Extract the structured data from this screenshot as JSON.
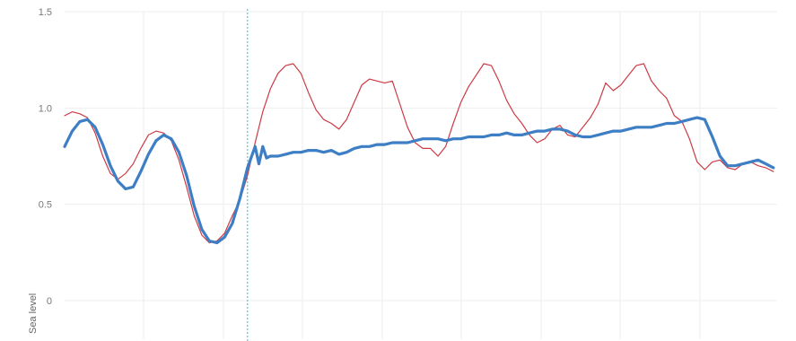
{
  "chart_data": {
    "type": "line",
    "title": "",
    "xlabel": "",
    "ylabel": "Sea level",
    "ylim": [
      -0.1,
      1.5
    ],
    "xlim": [
      0,
      187
    ],
    "yticks": [
      0,
      0.5,
      1.0,
      1.5
    ],
    "ytick_labels": [
      "0",
      "0.5",
      "1.0",
      "1.5"
    ],
    "grid": true,
    "legend": "none",
    "cursor_x": 48,
    "colors": {
      "red": "#cc3b45",
      "blue": "#3d7ec4",
      "grid": "#eeeeee",
      "cursor": "#2bbdd0"
    },
    "series": [
      {
        "color": "red",
        "x": [
          0,
          2,
          4,
          6,
          8,
          10,
          12,
          14,
          16,
          18,
          20,
          22,
          24,
          26,
          28,
          30,
          32,
          34,
          36,
          38,
          40,
          42,
          44,
          46,
          48,
          50,
          52,
          54,
          56,
          58,
          60,
          62,
          64,
          66,
          68,
          70,
          72,
          74,
          76,
          78,
          80,
          82,
          84,
          86,
          88,
          90,
          92,
          94,
          96,
          98,
          100,
          102,
          104,
          106,
          108,
          110,
          112,
          114,
          116,
          118,
          120,
          122,
          124,
          126,
          128,
          130,
          132,
          134,
          136,
          138,
          140,
          142,
          144,
          146,
          148,
          150,
          152,
          154,
          156,
          158,
          160,
          162,
          164,
          166,
          168,
          170,
          172,
          174,
          176,
          178,
          180,
          182,
          184,
          186
        ],
        "values": [
          0.96,
          0.98,
          0.97,
          0.95,
          0.87,
          0.75,
          0.66,
          0.63,
          0.66,
          0.71,
          0.79,
          0.86,
          0.88,
          0.87,
          0.83,
          0.73,
          0.59,
          0.44,
          0.34,
          0.3,
          0.31,
          0.35,
          0.44,
          0.52,
          0.65,
          0.82,
          0.98,
          1.1,
          1.18,
          1.22,
          1.23,
          1.18,
          1.08,
          0.99,
          0.94,
          0.92,
          0.89,
          0.94,
          1.03,
          1.12,
          1.15,
          1.14,
          1.13,
          1.14,
          1.02,
          0.9,
          0.82,
          0.79,
          0.79,
          0.75,
          0.8,
          0.92,
          1.03,
          1.11,
          1.17,
          1.23,
          1.22,
          1.14,
          1.04,
          0.97,
          0.92,
          0.86,
          0.82,
          0.84,
          0.89,
          0.91,
          0.86,
          0.85,
          0.9,
          0.95,
          1.02,
          1.13,
          1.09,
          1.12,
          1.17,
          1.22,
          1.23,
          1.14,
          1.09,
          1.05,
          0.96,
          0.93,
          0.84,
          0.72,
          0.68,
          0.72,
          0.73,
          0.69,
          0.68,
          0.71,
          0.72,
          0.7,
          0.69,
          0.67
        ]
      },
      {
        "color": "blue",
        "x": [
          0,
          2,
          4,
          6,
          8,
          10,
          12,
          14,
          16,
          18,
          20,
          22,
          24,
          26,
          28,
          30,
          32,
          34,
          36,
          38,
          40,
          42,
          44,
          46,
          48,
          50,
          51,
          52,
          53,
          54,
          56,
          58,
          60,
          62,
          64,
          66,
          68,
          70,
          72,
          74,
          76,
          78,
          80,
          82,
          84,
          86,
          88,
          90,
          92,
          94,
          96,
          98,
          100,
          102,
          104,
          106,
          108,
          110,
          112,
          114,
          116,
          118,
          120,
          122,
          124,
          126,
          128,
          130,
          132,
          134,
          136,
          138,
          140,
          142,
          144,
          146,
          148,
          150,
          152,
          154,
          156,
          158,
          160,
          162,
          164,
          166,
          168,
          170,
          172,
          174,
          176,
          178,
          180,
          182,
          184,
          186
        ],
        "values": [
          0.8,
          0.88,
          0.93,
          0.94,
          0.9,
          0.81,
          0.7,
          0.62,
          0.58,
          0.59,
          0.67,
          0.76,
          0.83,
          0.86,
          0.84,
          0.77,
          0.65,
          0.49,
          0.37,
          0.31,
          0.3,
          0.33,
          0.4,
          0.53,
          0.69,
          0.8,
          0.71,
          0.8,
          0.74,
          0.75,
          0.75,
          0.76,
          0.77,
          0.77,
          0.78,
          0.78,
          0.77,
          0.78,
          0.76,
          0.77,
          0.79,
          0.8,
          0.8,
          0.81,
          0.81,
          0.82,
          0.82,
          0.82,
          0.83,
          0.84,
          0.84,
          0.84,
          0.83,
          0.84,
          0.84,
          0.85,
          0.85,
          0.85,
          0.86,
          0.86,
          0.87,
          0.86,
          0.86,
          0.87,
          0.88,
          0.88,
          0.89,
          0.89,
          0.88,
          0.86,
          0.85,
          0.85,
          0.86,
          0.87,
          0.88,
          0.88,
          0.89,
          0.9,
          0.9,
          0.9,
          0.91,
          0.92,
          0.92,
          0.93,
          0.94,
          0.95,
          0.94,
          0.85,
          0.75,
          0.7,
          0.7,
          0.71,
          0.72,
          0.73,
          0.71,
          0.69
        ]
      }
    ]
  }
}
